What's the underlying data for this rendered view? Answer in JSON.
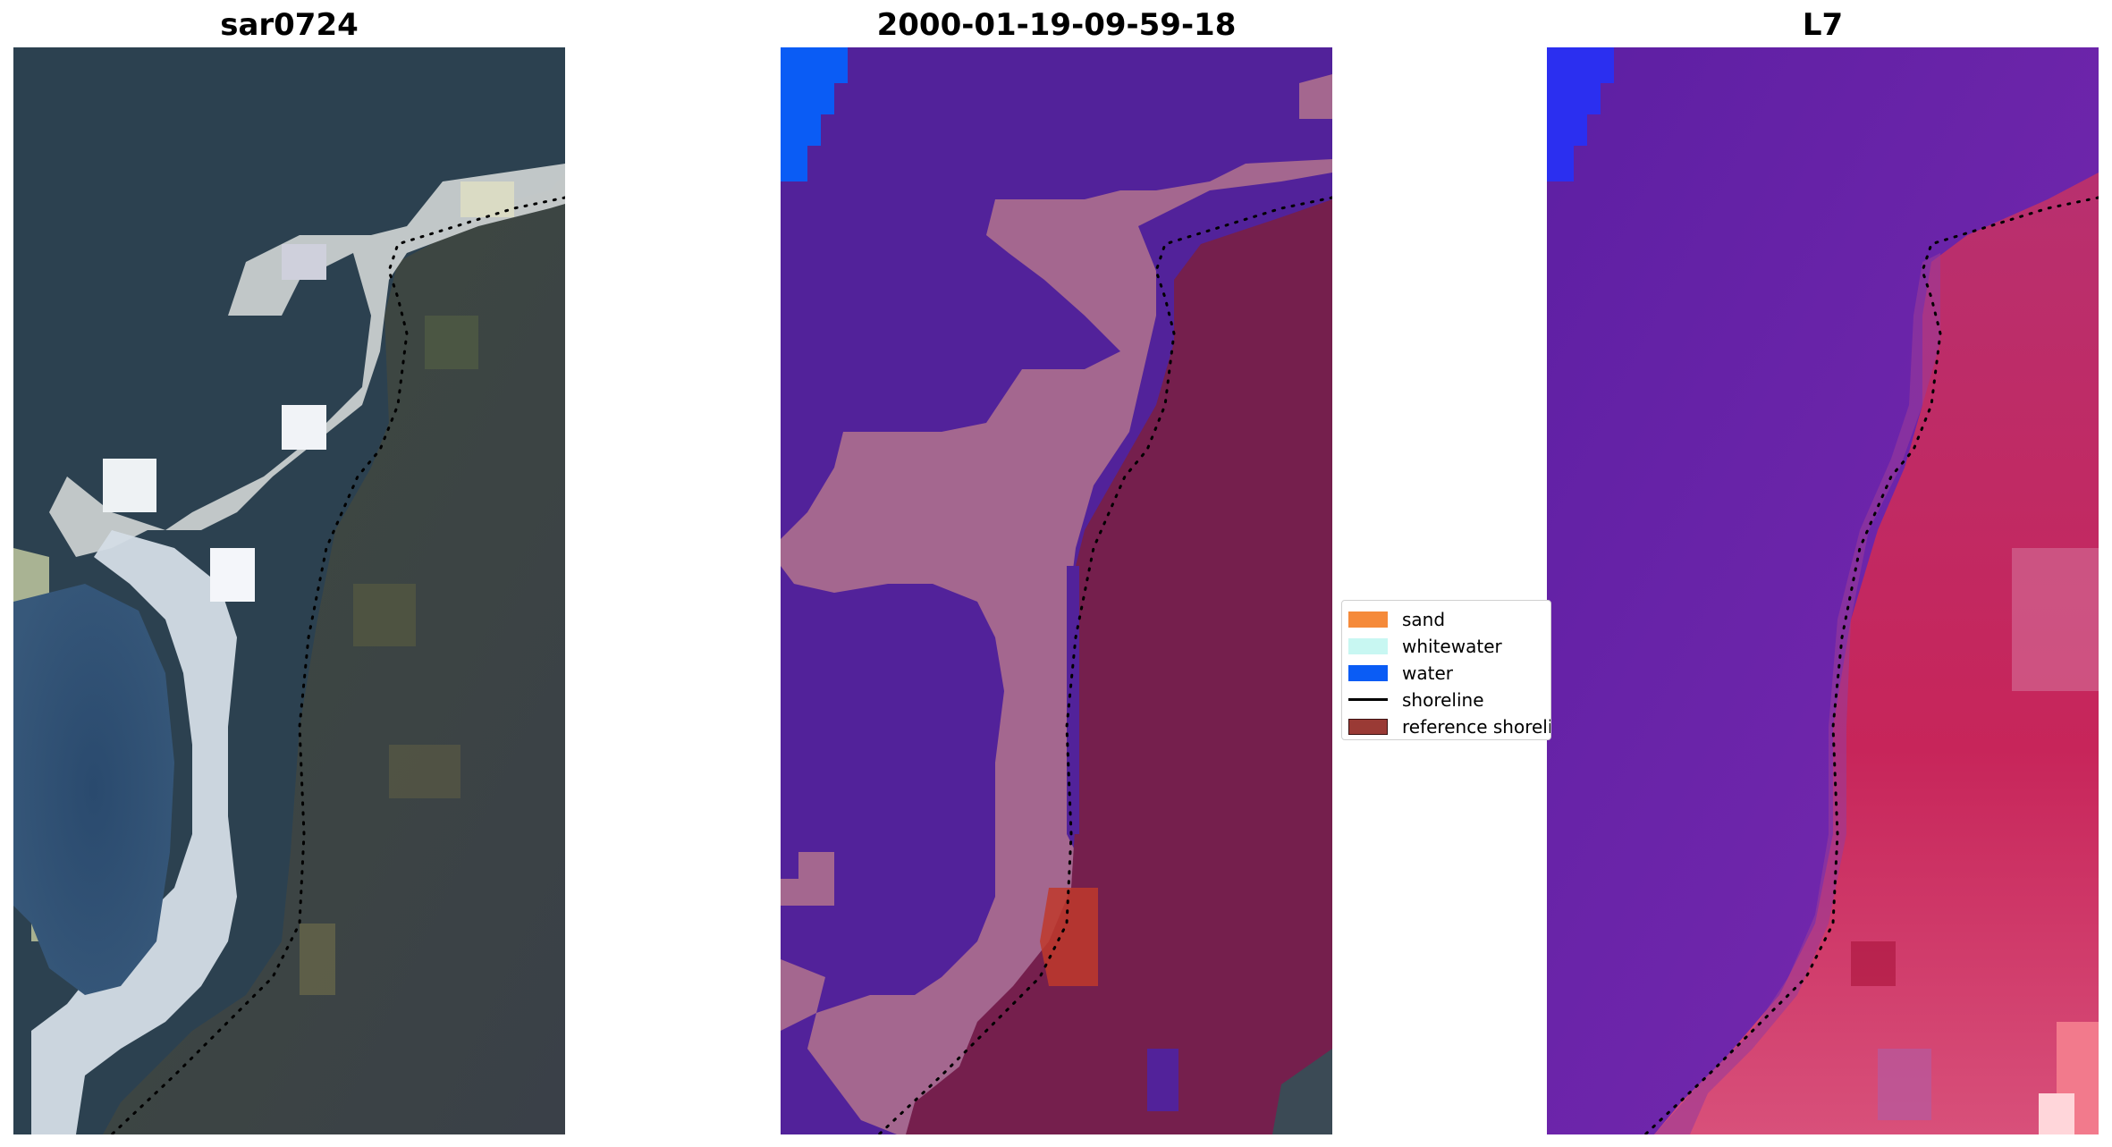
{
  "panels": {
    "left": {
      "title": "sar0724"
    },
    "middle": {
      "title": "2000-01-19-09-59-18"
    },
    "right": {
      "title": "L7"
    }
  },
  "legend": {
    "items": [
      {
        "label": "sand",
        "kind": "patch",
        "color": "#f58a3a"
      },
      {
        "label": "whitewater",
        "kind": "patch",
        "color": "#c8f7f2"
      },
      {
        "label": "water",
        "kind": "patch",
        "color": "#0a5cf5"
      },
      {
        "label": "shoreline",
        "kind": "line",
        "color": "#000000"
      },
      {
        "label": "reference shoreline buffer",
        "kind": "patch",
        "color": "#9a3a35"
      }
    ]
  },
  "colors": {
    "classified_water": "#52229a",
    "classified_buffer": "#a4678f",
    "classified_land": "#751f4d",
    "classified_sand_patch": "#c0392b",
    "water_blue": "#0a5cf5",
    "rgb_dark": "#2e4350",
    "rgb_bright": "#dfe6f0",
    "rgb_land": "#4a4a3a",
    "false_color_water": "#6a22a8",
    "false_color_land": "#c7255a"
  },
  "icons": {
    "shoreline_marker": "dotted-line"
  }
}
